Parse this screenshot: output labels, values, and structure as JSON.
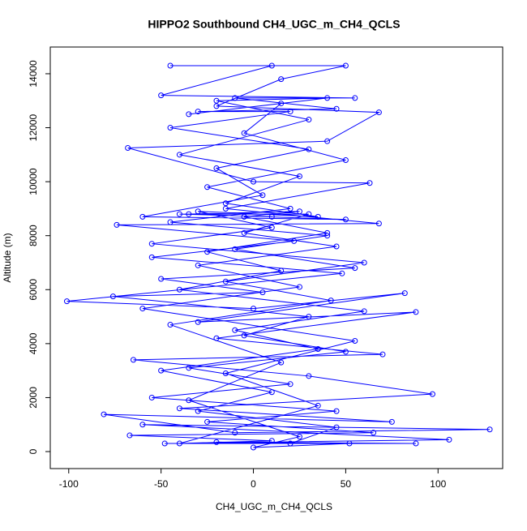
{
  "chart_data": {
    "type": "line",
    "title": "HIPPO2 Southbound CH4_UGC_m_CH4_QCLS",
    "x_label": "CH4_UGC_m_CH4_QCLS",
    "y_label": "Altitude (m)",
    "color": "#0000ff",
    "markers": true,
    "xlim": [
      -110,
      135
    ],
    "ylim": [
      -630,
      14990
    ],
    "xticks": [
      -100,
      -50,
      0,
      50,
      100
    ],
    "yticks": [
      0,
      2000,
      4000,
      6000,
      8000,
      10000,
      12000,
      14000
    ],
    "x": [
      20,
      45,
      -30,
      10,
      -50,
      35,
      -10,
      60,
      -40,
      15,
      -25,
      40,
      -5,
      25,
      -35,
      50,
      -60,
      5,
      -20,
      30,
      -45,
      20,
      -30,
      45,
      -10,
      55,
      -50,
      10,
      -45,
      50,
      15,
      -20,
      68,
      40,
      -68,
      0,
      63,
      -15,
      68,
      -74,
      22,
      -55,
      48,
      -101,
      0,
      82,
      -30,
      88,
      -20,
      70,
      -65,
      30,
      97,
      -40,
      75,
      -81,
      -10,
      128,
      -60,
      106,
      -48,
      88,
      -20,
      52,
      0,
      25,
      -35,
      15,
      -45,
      42,
      -15,
      60,
      -55,
      10,
      -30,
      35,
      -15,
      25,
      -40,
      30,
      -20,
      40,
      -35,
      15,
      -5,
      50,
      -25,
      20,
      -45,
      40,
      -10,
      55,
      -50,
      5,
      -76,
      30,
      -5,
      50,
      -35,
      20,
      -55,
      45,
      -25,
      65,
      -67,
      10,
      -40,
      35,
      -15,
      55,
      -60,
      25,
      -30,
      45,
      -5,
      30,
      -40,
      10
    ],
    "y": [
      300,
      900,
      1500,
      2200,
      3000,
      3800,
      4500,
      5200,
      6000,
      6700,
      7400,
      8100,
      8700,
      8900,
      8800,
      8600,
      8700,
      9500,
      10500,
      11200,
      12000,
      12600,
      12600,
      12700,
      13100,
      13100,
      13200,
      14300,
      14300,
      14300,
      13800,
      12800,
      12570,
      11500,
      11250,
      10000,
      9950,
      9000,
      8450,
      8400,
      7800,
      7200,
      6600,
      5570,
      5300,
      5870,
      4800,
      5170,
      4200,
      3600,
      3400,
      2800,
      2130,
      1600,
      1100,
      1380,
      700,
      820,
      1000,
      440,
      300,
      300,
      350,
      300,
      150,
      550,
      1900,
      3300,
      4700,
      5600,
      6300,
      7000,
      7700,
      8300,
      8900,
      8700,
      9200,
      10200,
      11000,
      12300,
      13000,
      13100,
      12500,
      12900,
      11800,
      10800,
      9800,
      9000,
      8500,
      8000,
      7500,
      6800,
      6400,
      5900,
      5750,
      5000,
      4300,
      3700,
      3100,
      2500,
      2000,
      1500,
      1100,
      700,
      600,
      400,
      300,
      1700,
      2900,
      4100,
      5300,
      6100,
      6900,
      7600,
      8100,
      8800,
      8800,
      8700
    ]
  }
}
